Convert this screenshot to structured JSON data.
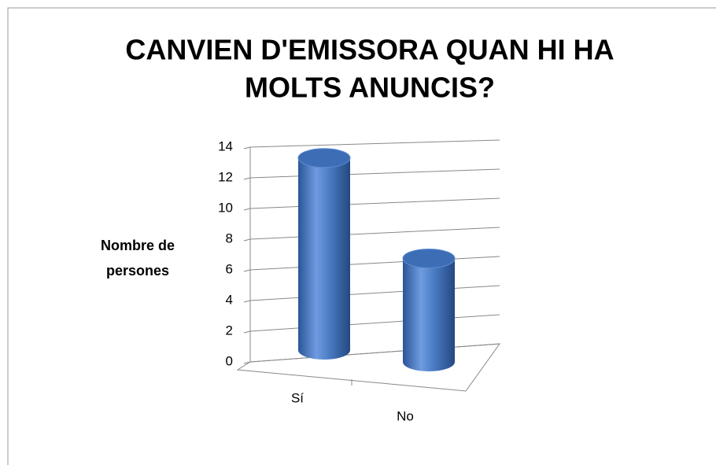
{
  "chart_data": {
    "type": "bar3d",
    "title": [
      "CANVIEN D'EMISSORA QUAN HI HA",
      "MOLTS ANUNCIS?"
    ],
    "y_label": [
      "Nombre de",
      "persones"
    ],
    "categories": [
      "Sí",
      "No"
    ],
    "values": [
      13,
      7
    ],
    "color": "#4a7cc4",
    "ylim": [
      0,
      14
    ],
    "yticks": [
      0,
      2,
      4,
      6,
      8,
      10,
      12,
      14
    ],
    "grid": true
  }
}
